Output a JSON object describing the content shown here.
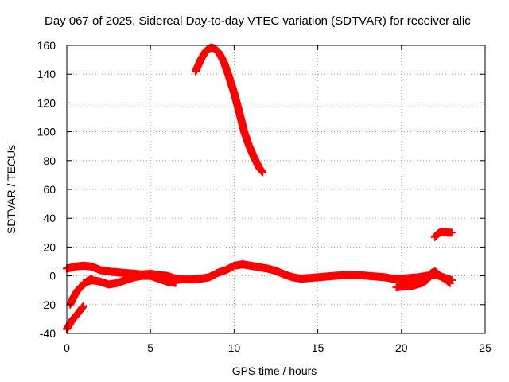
{
  "chart_data": {
    "type": "scatter",
    "title": "Day 067 of 2025, Sidereal Day-to-day VTEC variation (SDTVAR) for receiver alic",
    "xlabel": "GPS time / hours",
    "ylabel": "SDTVAR / TECUs",
    "xlim": [
      0,
      25
    ],
    "ylim": [
      -40,
      160
    ],
    "xticks": [
      0,
      5,
      10,
      15,
      20,
      25
    ],
    "yticks": [
      -40,
      -20,
      0,
      20,
      40,
      60,
      80,
      100,
      120,
      140,
      160
    ],
    "grid": true,
    "marker": "plus",
    "color": "#ff0000",
    "series": [
      {
        "name": "arc-high",
        "x": [
          7.7,
          8.0,
          8.3,
          8.6,
          8.8,
          9.1,
          9.4,
          9.7,
          10.0,
          10.3,
          10.6,
          10.9,
          11.2,
          11.5,
          11.7
        ],
        "y": [
          142,
          150,
          156,
          158.5,
          158,
          155,
          148,
          138,
          127,
          114,
          100,
          90,
          82,
          75,
          72
        ]
      },
      {
        "name": "arc-right-high",
        "x": [
          22.0,
          22.2,
          22.4,
          22.6,
          22.8,
          23.0
        ],
        "y": [
          27,
          29.5,
          30.5,
          30.5,
          30,
          30
        ]
      },
      {
        "name": "arc-main",
        "x": [
          0.0,
          0.5,
          1.0,
          1.5,
          2.0,
          2.5,
          3.0,
          3.5,
          4.0,
          4.5,
          5.0,
          5.5,
          6.0,
          6.5,
          7.0,
          7.5,
          8.0,
          8.5,
          9.0,
          9.5,
          10.0,
          10.5,
          11.0,
          11.5,
          12.0,
          12.5,
          13.0,
          13.5,
          14.0,
          14.5,
          15.0,
          15.5,
          16.0,
          16.5,
          17.0,
          17.5,
          18.0,
          18.5,
          19.0,
          19.5,
          20.0,
          20.5,
          21.0,
          21.5,
          22.0,
          22.5,
          23.0
        ],
        "y": [
          5,
          6.5,
          7,
          6.5,
          4,
          3,
          2.5,
          2,
          1.5,
          1,
          1.5,
          0.5,
          0,
          -2,
          -2.5,
          -2.5,
          -2,
          -1,
          2,
          4,
          7,
          8,
          7,
          6,
          5,
          3.5,
          1,
          -1,
          -2,
          -1.5,
          -1,
          -0.5,
          0,
          0.5,
          0.5,
          0.5,
          0,
          -0.5,
          -1,
          -2,
          -2,
          -1.5,
          -1,
          0,
          1,
          -1,
          -3
        ]
      },
      {
        "name": "arc-mid-low",
        "x": [
          1.0,
          1.5,
          2.0,
          2.5,
          3.0,
          3.5,
          4.0,
          4.5,
          5.0,
          5.5,
          6.0,
          6.5
        ],
        "y": [
          -5,
          -3,
          -4,
          -6,
          -5,
          -3,
          -1,
          0,
          0,
          -2,
          -4,
          -5
        ]
      },
      {
        "name": "arc-left-low",
        "x": [
          0.0,
          0.15,
          0.3,
          0.45,
          0.6,
          0.8,
          1.0
        ],
        "y": [
          -37,
          -34,
          -31,
          -29,
          -27,
          -24,
          -21
        ]
      },
      {
        "name": "arc-left-low2",
        "x": [
          0.2,
          0.4,
          0.6,
          0.8,
          1.0,
          1.2,
          1.5
        ],
        "y": [
          -20,
          -15,
          -11,
          -8,
          -6,
          -4,
          -2
        ]
      },
      {
        "name": "arc-right-low",
        "x": [
          19.7,
          20.0,
          20.3,
          20.6,
          20.9,
          21.2,
          21.5,
          21.8,
          22.0,
          22.3,
          22.6,
          22.9
        ],
        "y": [
          -8,
          -7.5,
          -7,
          -7,
          -6,
          -5,
          -3,
          2,
          3,
          0,
          -2,
          -5
        ]
      }
    ]
  }
}
